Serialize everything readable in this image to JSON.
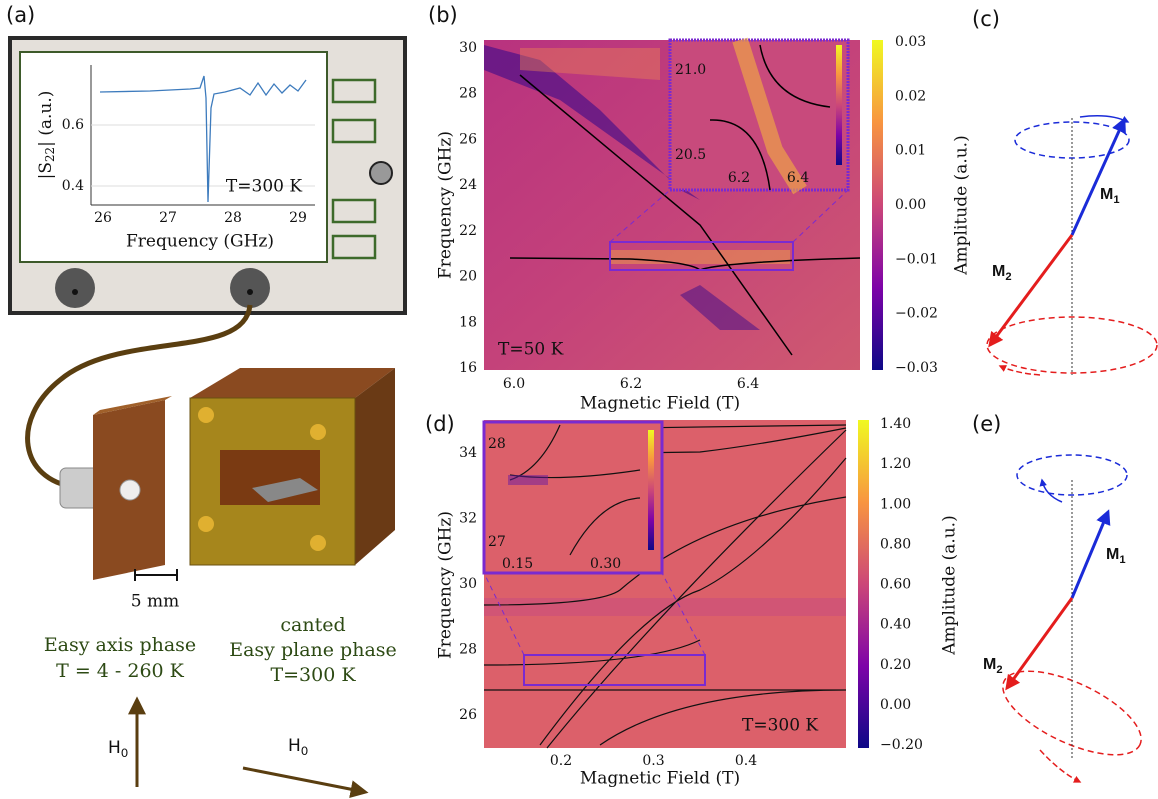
{
  "panel_a": {
    "label": "(a)",
    "inset": {
      "ylabel": {
        "main": "|S",
        "sub": "22",
        "rest": "| (a.u.)"
      },
      "yticks": [
        "0.6",
        "0.4"
      ],
      "xticks": [
        "26",
        "27",
        "28",
        "29"
      ],
      "xlabel": "Frequency (GHz)",
      "annotation": "T=300 K"
    },
    "scale_bar": "5 mm",
    "easy_axis": [
      "Easy axis phase",
      "T = 4 - 260 K"
    ],
    "easy_plane": [
      "canted",
      "Easy plane phase",
      "T=300 K"
    ],
    "field_axis": {
      "main": "H",
      "sub": "0"
    },
    "field_plane": {
      "main": "H",
      "sub": "0"
    }
  },
  "panel_b": {
    "label": "(b)",
    "ylabel": "Frequency (GHz)",
    "xlabel": "Magnetic Field (T)",
    "yticks": [
      "30",
      "28",
      "26",
      "24",
      "22",
      "20",
      "18",
      "16"
    ],
    "xticks": [
      "6.0",
      "6.2",
      "6.4"
    ],
    "annotation": "T=50 K",
    "inset_yticks": [
      "21.0",
      "20.5"
    ],
    "inset_xticks": [
      "6.2",
      "6.4"
    ],
    "colorbar_ticks": [
      "0.03",
      "0.02",
      "0.01",
      "0.00",
      "−0.01",
      "−0.02",
      "−0.03"
    ],
    "colorbar_label": "Amplitude (a.u.)"
  },
  "panel_c": {
    "label": "(c)",
    "m1": {
      "main": "M",
      "sub": "1"
    },
    "m2": {
      "main": "M",
      "sub": "2"
    }
  },
  "panel_d": {
    "label": "(d)",
    "ylabel": "Frequency (GHz)",
    "xlabel": "Magnetic Field (T)",
    "yticks": [
      "34",
      "32",
      "30",
      "28",
      "26"
    ],
    "xticks": [
      "0.2",
      "0.3",
      "0.4"
    ],
    "annotation": "T=300 K",
    "inset_yticks": [
      "28",
      "27"
    ],
    "inset_xticks": [
      "0.15",
      "0.30"
    ],
    "colorbar_ticks": [
      "1.40",
      "1.20",
      "1.00",
      "0.80",
      "0.60",
      "0.40",
      "0.20",
      "0.00",
      "−0.20"
    ],
    "colorbar_label": "Amplitude (a.u.)"
  },
  "panel_e": {
    "label": "(e)",
    "m1": {
      "main": "M",
      "sub": "1"
    },
    "m2": {
      "main": "M",
      "sub": "2"
    }
  }
}
